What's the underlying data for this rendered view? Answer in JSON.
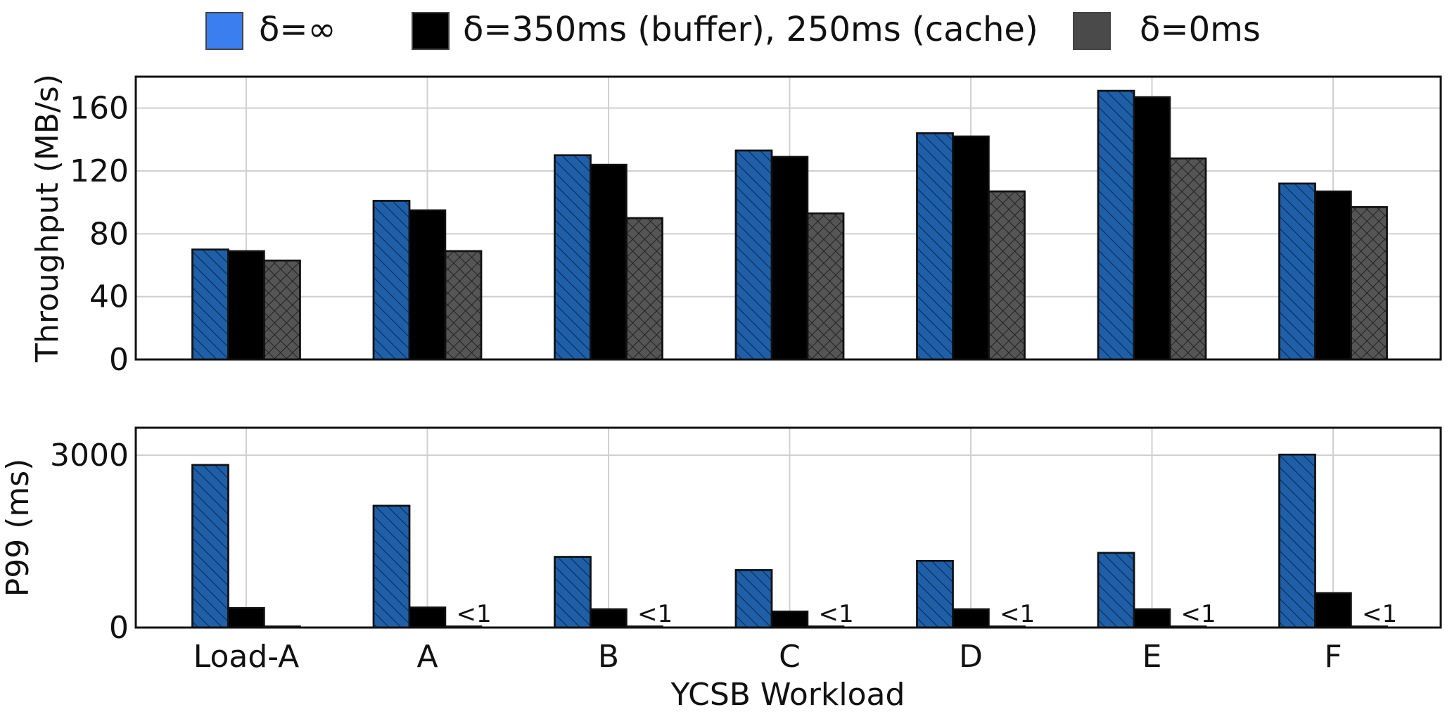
{
  "colors": {
    "series_fill": [
      "#1f5fa8",
      "#000000",
      "#555555"
    ],
    "legend_swatch": [
      "#3b7ef0",
      "#000000",
      "#4a4a4a"
    ],
    "grid": "#d0d0d0",
    "edge": "#111111"
  },
  "chart_data": [
    {
      "type": "bar",
      "categories": [
        "Load-A",
        "A",
        "B",
        "C",
        "D",
        "E",
        "F"
      ],
      "series": [
        {
          "name": "δ=∞",
          "values": [
            70,
            101,
            130,
            133,
            144,
            171,
            112
          ]
        },
        {
          "name": "δ=350ms (buffer), 250ms (cache)",
          "values": [
            69,
            95,
            124,
            129,
            142,
            167,
            107
          ]
        },
        {
          "name": "δ=0ms",
          "values": [
            63,
            69,
            90,
            93,
            107,
            128,
            97
          ]
        }
      ],
      "ylabel": "Throughput (MB/s)",
      "xlabel": "",
      "ylim": [
        0,
        180
      ],
      "yticks": [
        0,
        40,
        80,
        120,
        160
      ],
      "grid": true,
      "legend": "top"
    },
    {
      "type": "bar",
      "categories": [
        "Load-A",
        "A",
        "B",
        "C",
        "D",
        "E",
        "F"
      ],
      "series": [
        {
          "name": "δ=∞",
          "values": [
            2830,
            2120,
            1230,
            1000,
            1160,
            1300,
            3010
          ]
        },
        {
          "name": "δ=350ms (buffer), 250ms (cache)",
          "values": [
            340,
            350,
            320,
            280,
            320,
            320,
            600
          ]
        },
        {
          "name": "δ=0ms",
          "values": [
            1,
            1,
            1,
            1,
            1,
            1,
            1
          ]
        }
      ],
      "annotations": [
        "",
        "<1",
        "<1",
        "<1",
        "<1",
        "<1",
        "<1"
      ],
      "ylabel": "P99 (ms)",
      "xlabel": "YCSB Workload",
      "ylim": [
        0,
        3000
      ],
      "yticks": [
        0,
        3000
      ],
      "grid": true
    }
  ]
}
